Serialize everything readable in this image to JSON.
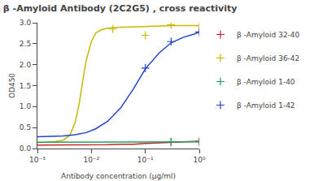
{
  "chart_data": {
    "type": "line",
    "title": "β -Amyloid Antibody (2C2G5) , cross reactivity",
    "x_label": "Antibody concentration (µg/ml)",
    "y_label": "OD450",
    "log": "x",
    "grid": false,
    "legend": "right",
    "xlim": [
      0.001,
      1.0
    ],
    "xticks": [
      {
        "value": 0.001,
        "label": "10⁻³"
      },
      {
        "value": 0.01,
        "label": "10⁻²"
      },
      {
        "value": 0.1,
        "label": "10⁻¹"
      },
      {
        "value": 1,
        "label": "10⁰"
      }
    ],
    "ylim": [
      0,
      3.0
    ],
    "yticks": [
      {
        "value": 0.0,
        "label": "0.0"
      },
      0.5,
      {
        "value": 1.0,
        "label": "1.0"
      },
      1.5,
      {
        "value": 2.0,
        "label": "2.0"
      },
      2.5,
      {
        "value": 3.0,
        "label": "3.0"
      }
    ],
    "series": [
      {
        "name": "β -Amyloid 32-40",
        "color": "#cc2222",
        "x": [
          0.001,
          0.002,
          0.003,
          0.005,
          0.008,
          0.012,
          0.02,
          0.035,
          0.06,
          0.1,
          0.18,
          0.3,
          0.5,
          0.8,
          1.0
        ],
        "values": [
          0.08,
          0.08,
          0.08,
          0.08,
          0.09,
          0.09,
          0.09,
          0.1,
          0.1,
          0.12,
          0.14,
          0.15,
          0.16,
          0.17,
          0.17
        ],
        "points": {
          "x": [
            0.3,
            1.0
          ],
          "values": [
            0.15,
            0.17
          ]
        }
      },
      {
        "name": "β -Amyloid 36-42",
        "color": "#c8b800",
        "x": [
          0.001,
          0.0015,
          0.002,
          0.003,
          0.004,
          0.005,
          0.006,
          0.007,
          0.008,
          0.01,
          0.012,
          0.015,
          0.02,
          0.03,
          0.05,
          0.08,
          0.12,
          0.2,
          0.35,
          0.6,
          1.0
        ],
        "values": [
          0.14,
          0.15,
          0.16,
          0.2,
          0.32,
          0.62,
          1.1,
          1.65,
          2.1,
          2.55,
          2.75,
          2.83,
          2.87,
          2.89,
          2.9,
          2.91,
          2.91,
          2.92,
          2.93,
          2.93,
          2.93
        ],
        "points": {
          "x": [
            0.025,
            0.1,
            0.3,
            1.0
          ],
          "values": [
            2.85,
            2.7,
            2.95,
            2.93
          ]
        }
      },
      {
        "name": "β -Amyloid 1-40",
        "color": "#22a060",
        "x": [
          0.001,
          0.002,
          0.003,
          0.005,
          0.008,
          0.012,
          0.02,
          0.035,
          0.06,
          0.1,
          0.18,
          0.3,
          0.5,
          0.8,
          1.0
        ],
        "values": [
          0.15,
          0.15,
          0.15,
          0.15,
          0.15,
          0.15,
          0.15,
          0.15,
          0.15,
          0.15,
          0.16,
          0.16,
          0.16,
          0.16,
          0.16
        ],
        "points": {
          "x": [
            0.3,
            1.0
          ],
          "values": [
            0.16,
            0.16
          ]
        }
      },
      {
        "name": "β -Amyloid 1-42",
        "color": "#2244cc",
        "x": [
          0.001,
          0.002,
          0.003,
          0.005,
          0.008,
          0.012,
          0.02,
          0.035,
          0.06,
          0.1,
          0.18,
          0.3,
          0.5,
          0.8,
          1.0
        ],
        "values": [
          0.28,
          0.29,
          0.3,
          0.33,
          0.38,
          0.47,
          0.65,
          0.97,
          1.42,
          1.9,
          2.28,
          2.52,
          2.65,
          2.73,
          2.78
        ],
        "points": {
          "x": [
            0.1,
            0.3,
            1.0
          ],
          "values": [
            1.92,
            2.55,
            2.78
          ]
        }
      }
    ]
  }
}
